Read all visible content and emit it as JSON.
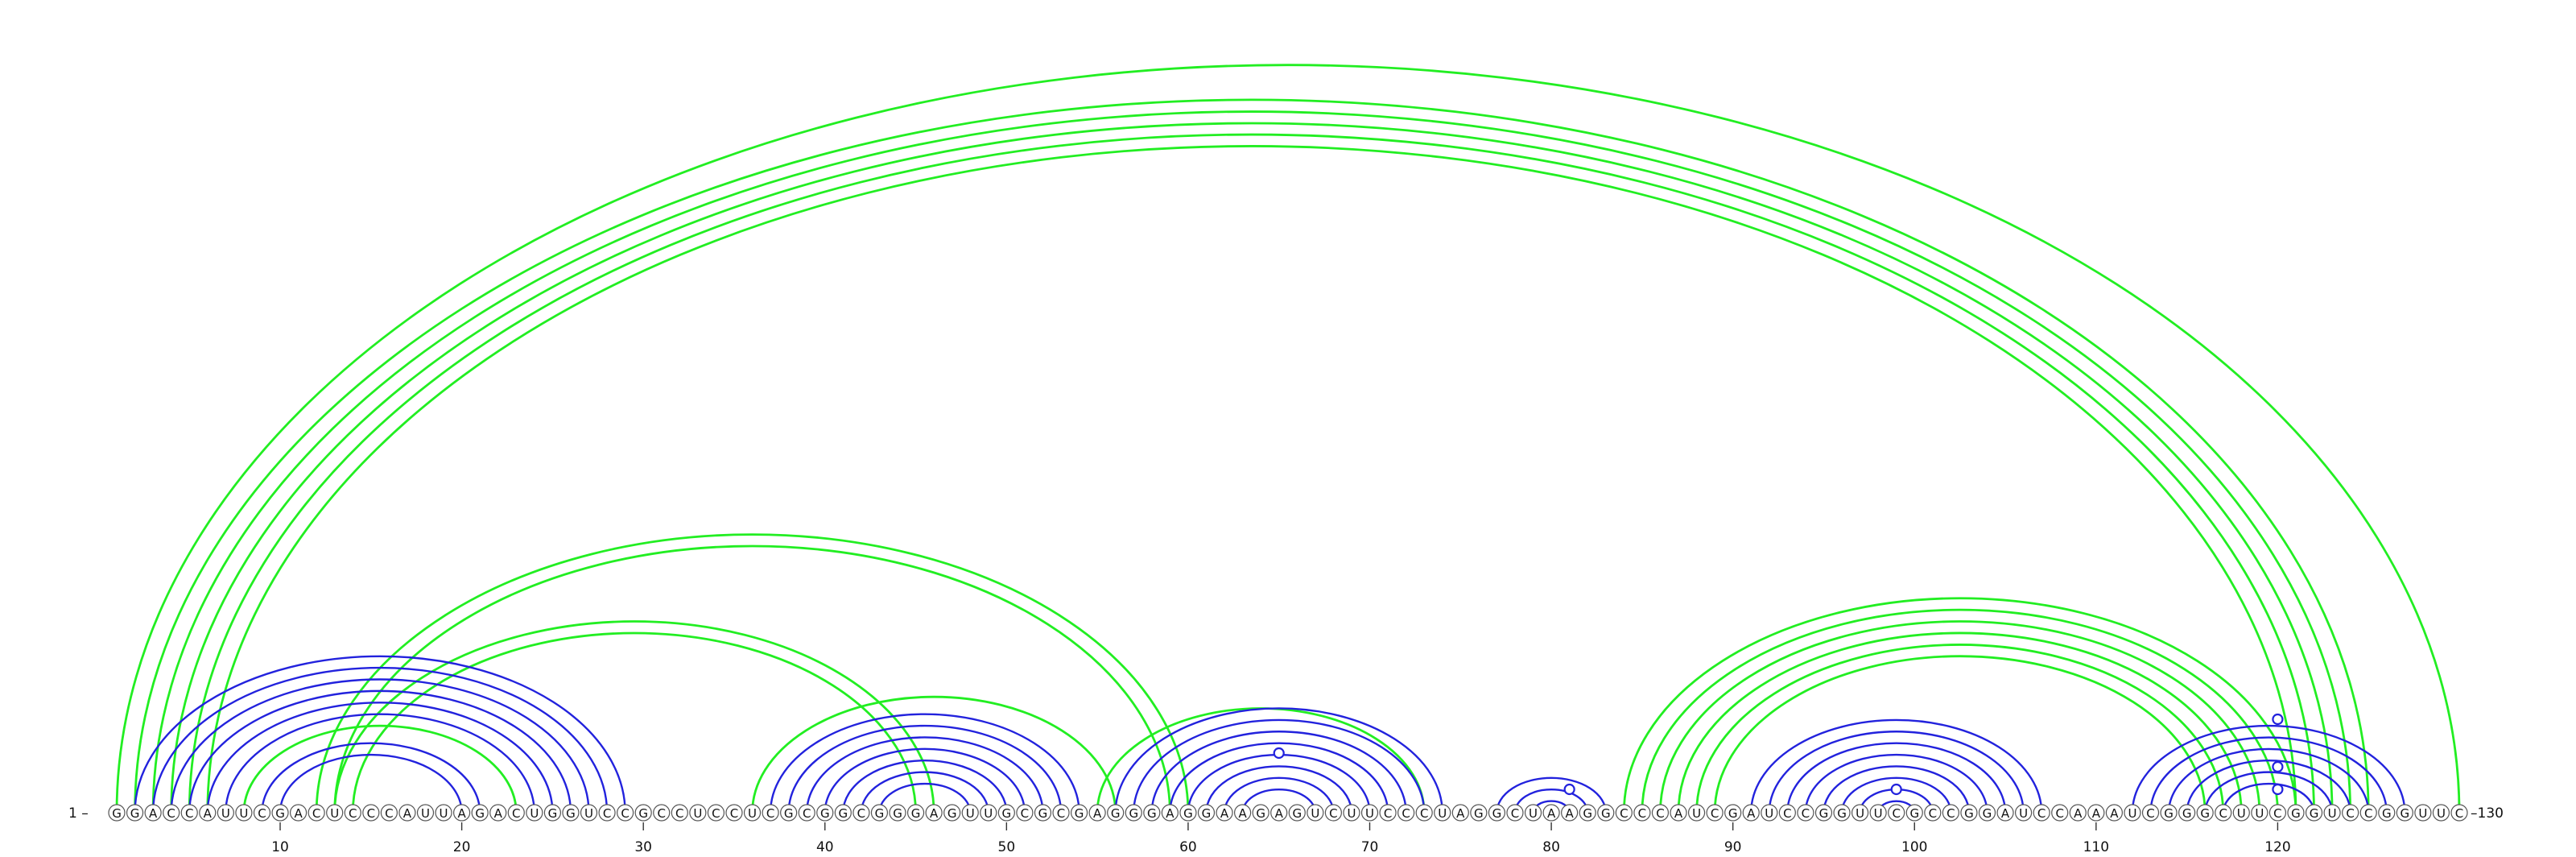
{
  "sequence": "GGACCAUUCGACUCCCAUUAGACUGGUCCGCCUCCUCGCGGCGGGAGUUGCGCGAGGGAGGAAGAGUCUUCCCUAGGCUAAGGCCCAUCGAUCCGGUUCGCCGGAUCCAAAUCGGGCUUCGGUCCGGUUC",
  "labels": {
    "start": "1 –",
    "end": "–130"
  },
  "axis": {
    "ticks": [
      10,
      20,
      30,
      40,
      50,
      60,
      70,
      80,
      90,
      100,
      110,
      120
    ]
  },
  "colors": {
    "nested_pairs": "#2222dd",
    "crossing_pairs": "#22ee22"
  },
  "blue_helices": [
    {
      "i": 2,
      "j": 29,
      "n": 6
    },
    {
      "i": 9,
      "j": 21,
      "n": 2
    },
    {
      "i": 37,
      "j": 54,
      "n": 7
    },
    {
      "i": 56,
      "j": 74,
      "n": 8
    },
    {
      "i": 77,
      "j": 83,
      "n": 3
    },
    {
      "i": 91,
      "j": 107,
      "n": 8
    },
    {
      "i": 112,
      "j": 127,
      "n": 6
    }
  ],
  "green_helices": [
    {
      "i": 1,
      "j": 130,
      "n": 1
    },
    {
      "i": 2,
      "j": 125,
      "n": 5
    },
    {
      "i": 8,
      "j": 23,
      "n": 1
    },
    {
      "i": 12,
      "j": 60,
      "n": 2
    },
    {
      "i": 13,
      "j": 46,
      "n": 2
    },
    {
      "i": 36,
      "j": 56,
      "n": 1
    },
    {
      "i": 55,
      "j": 73,
      "n": 1
    },
    {
      "i": 84,
      "j": 121,
      "n": 6
    }
  ],
  "pseudoknot_markers": [
    65,
    81,
    99,
    120
  ]
}
